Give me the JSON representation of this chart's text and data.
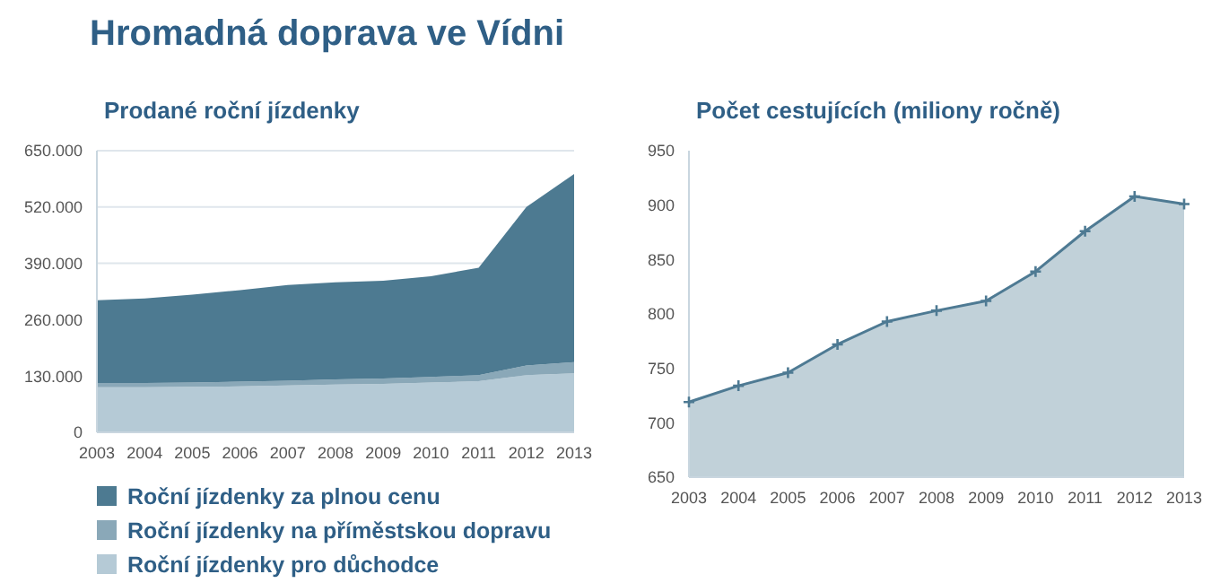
{
  "chart_data": [
    {
      "type": "area",
      "title": "Hromadná doprava ve Vídni",
      "subtitle": "Prodané roční jízdenky",
      "stacked": true,
      "categories": [
        "2003",
        "2004",
        "2005",
        "2006",
        "2007",
        "2008",
        "2009",
        "2010",
        "2011",
        "2012",
        "2013"
      ],
      "series": [
        {
          "name": "Roční jízdenky pro důchodce",
          "color": "#b5cad6",
          "values": [
            104000,
            104000,
            105000,
            106000,
            108000,
            110000,
            112000,
            115000,
            118000,
            132000,
            136000
          ]
        },
        {
          "name": "Roční jízdenky na příměstskou dopravu",
          "color": "#8aa8b8",
          "values": [
            10000,
            10000,
            10000,
            11000,
            11000,
            12000,
            12000,
            13000,
            14000,
            22000,
            26000
          ]
        },
        {
          "name": "Roční jízdenky za plnou cenu",
          "color": "#4d7a91",
          "values": [
            191000,
            195000,
            203000,
            211000,
            221000,
            224000,
            226000,
            232000,
            248000,
            366000,
            434000
          ]
        }
      ],
      "ylim": [
        0,
        650000
      ],
      "yticks": [
        {
          "value": 0,
          "label": "0"
        },
        {
          "value": 130000,
          "label": "130.000"
        },
        {
          "value": 260000,
          "label": "260.000"
        },
        {
          "value": 390000,
          "label": "390.000"
        },
        {
          "value": 520000,
          "label": "520.000"
        },
        {
          "value": 650000,
          "label": "650.000"
        }
      ],
      "grid": "y",
      "legend": "bottom"
    },
    {
      "type": "area",
      "title": "Počet cestujících (miliony ročně)",
      "categories": [
        "2003",
        "2004",
        "2005",
        "2006",
        "2007",
        "2008",
        "2009",
        "2010",
        "2011",
        "2012",
        "2013"
      ],
      "series": [
        {
          "color": "#4e7a93",
          "values": [
            719,
            734,
            746,
            772,
            793,
            803,
            812,
            839,
            876,
            908,
            901
          ]
        }
      ],
      "ylim": [
        650,
        950
      ],
      "yticks": [
        650,
        700,
        750,
        800,
        850,
        900,
        950
      ],
      "marker": "cross"
    }
  ]
}
